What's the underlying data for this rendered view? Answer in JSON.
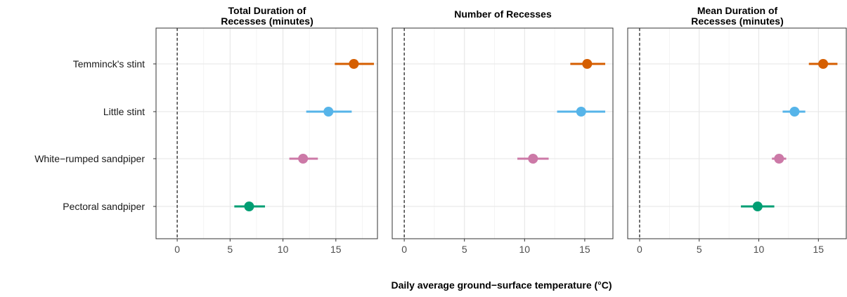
{
  "chart_data": {
    "type": "scatter",
    "xlabel": "Daily average ground−surface temperature (°C)",
    "categories": [
      "Temminck's stint",
      "Little stint",
      "White−rumped sandpiper",
      "Pectoral sandpiper"
    ],
    "colors": {
      "Temminck's stint": "#D55E00",
      "Little stint": "#56B4E9",
      "White−rumped sandpiper": "#CC79A7",
      "Pectoral sandpiper": "#009E73"
    },
    "reference_line_x": 0,
    "grid": true,
    "panels": [
      {
        "title_lines": [
          "Total Duration of",
          "Recesses (minutes)"
        ],
        "xlim": [
          -2,
          19
        ],
        "ticks": [
          0,
          5,
          10,
          15
        ],
        "points": [
          {
            "species": "Temminck's stint",
            "x": 16.7,
            "low": 14.9,
            "high": 18.6
          },
          {
            "species": "Little stint",
            "x": 14.3,
            "low": 12.2,
            "high": 16.5
          },
          {
            "species": "White−rumped sandpiper",
            "x": 11.9,
            "low": 10.6,
            "high": 13.3
          },
          {
            "species": "Pectoral sandpiper",
            "x": 6.8,
            "low": 5.4,
            "high": 8.3
          }
        ]
      },
      {
        "title_lines": [
          "Number of Recesses"
        ],
        "xlim": [
          -1,
          17.4
        ],
        "ticks": [
          0,
          5,
          10,
          15
        ],
        "points": [
          {
            "species": "Temminck's stint",
            "x": 15.2,
            "low": 13.8,
            "high": 16.7
          },
          {
            "species": "Little stint",
            "x": 14.7,
            "low": 12.7,
            "high": 16.7
          },
          {
            "species": "White−rumped sandpiper",
            "x": 10.7,
            "low": 9.4,
            "high": 12.0
          },
          {
            "species": "Pectoral sandpiper",
            "x": null,
            "low": null,
            "high": null
          }
        ]
      },
      {
        "title_lines": [
          "Mean Duration of",
          "Recesses (minutes)"
        ],
        "xlim": [
          -1,
          17.4
        ],
        "ticks": [
          0,
          5,
          10,
          15
        ],
        "points": [
          {
            "species": "Temminck's stint",
            "x": 15.4,
            "low": 14.2,
            "high": 16.6
          },
          {
            "species": "Little stint",
            "x": 13.0,
            "low": 12.0,
            "high": 13.9
          },
          {
            "species": "White−rumped sandpiper",
            "x": 11.7,
            "low": 11.1,
            "high": 12.3
          },
          {
            "species": "Pectoral sandpiper",
            "x": 9.9,
            "low": 8.5,
            "high": 11.3
          }
        ]
      }
    ]
  }
}
